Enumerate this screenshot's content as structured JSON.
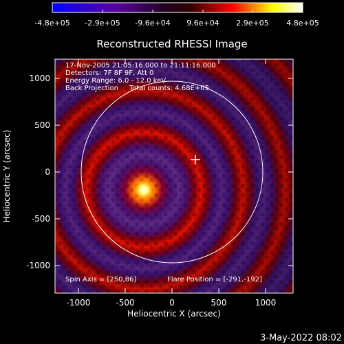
{
  "colorbar": {
    "tick_labels": [
      "-4.8e+05",
      "-2.9e+05",
      "-9.6e+04",
      "9.6e+04",
      "2.9e+05",
      "4.8e+05"
    ],
    "colors": [
      "#0000ff",
      "#5a00a0",
      "#200020",
      "#000000",
      "#ff0000",
      "#ffff00",
      "#ffffff"
    ]
  },
  "plot": {
    "title": "Reconstructed RHESSI Image",
    "xlabel": "Heliocentric X (arcsec)",
    "ylabel": "Heliocentric Y (arcsec)",
    "x_ticks": [
      "-1000",
      "-500",
      "0",
      "500",
      "1000"
    ],
    "y_ticks": [
      "1000",
      "500",
      "0",
      "-500",
      "-1000"
    ],
    "xlim": [
      -1300,
      1300
    ],
    "ylim": [
      -1300,
      1300
    ],
    "info_lines": [
      "17-Nov-2005 21:05:16.000 to 21:11:16.000",
      "Detectors: 7F 8F 9F, Att 0",
      "Energy Range: 6.0 - 12.0 keV",
      "Back Projection     Total counts: 4.68E+05"
    ],
    "spin_axis": "Spin Axis = [250,86]",
    "flare_position": "Flare Position = [-291,-192]",
    "source_center": [
      -291,
      -192
    ],
    "spin_axis_center": [
      250,
      86
    ],
    "solar_disk_radius": 970
  },
  "footer": {
    "timestamp": "3-May-2022 08:02"
  }
}
